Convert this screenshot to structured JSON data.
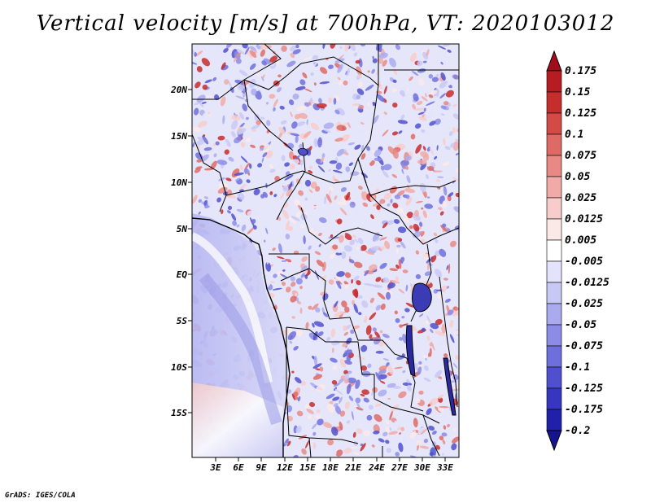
{
  "title": "Vertical velocity [m/s] at 700hPa, VT: 2020103012",
  "credit": "GrADS: IGES/COLA",
  "map": {
    "region": "Central Africa",
    "lat_labels": [
      "20N",
      "15N",
      "10N",
      "5N",
      "EQ",
      "5S",
      "10S",
      "15S"
    ],
    "lon_labels": [
      "3E",
      "6E",
      "9E",
      "12E",
      "15E",
      "18E",
      "21E",
      "24E",
      "27E",
      "30E",
      "33E"
    ]
  },
  "colorbar": {
    "labels": [
      "0.175",
      "0.15",
      "0.125",
      "0.1",
      "0.075",
      "0.05",
      "0.025",
      "0.0125",
      "0.005",
      "-0.005",
      "-0.0125",
      "-0.025",
      "-0.05",
      "-0.075",
      "-0.1",
      "-0.125",
      "-0.175",
      "-0.2"
    ],
    "colors": [
      "#a40c1c",
      "#b71c22",
      "#c62d2d",
      "#d44a46",
      "#de6a65",
      "#e88985",
      "#f0aaa7",
      "#f7cdcb",
      "#fbe9e8",
      "#ffffff",
      "#e3e3fb",
      "#c8c8f5",
      "#aaaaee",
      "#8c8ce6",
      "#6e6edc",
      "#5050cf",
      "#3636c0",
      "#2020aa",
      "#141490"
    ]
  },
  "colors": {
    "frame": "#000000",
    "background": "#ffffff"
  }
}
